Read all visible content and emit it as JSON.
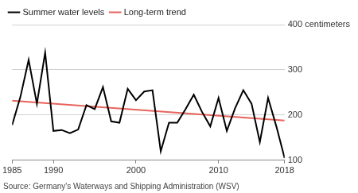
{
  "chart_data": {
    "type": "line",
    "source": "Source: Germany's Waterways and Shipping Administration (WSV)",
    "x": [
      1985,
      1986,
      1987,
      1988,
      1989,
      1990,
      1991,
      1992,
      1993,
      1994,
      1995,
      1996,
      1997,
      1998,
      1999,
      2000,
      2001,
      2002,
      2003,
      2004,
      2005,
      2006,
      2007,
      2008,
      2009,
      2010,
      2011,
      2012,
      2013,
      2014,
      2015,
      2016,
      2017,
      2018
    ],
    "series": [
      {
        "name": "Summer water levels",
        "color": "#000000",
        "marker": "none",
        "line_style": "solid",
        "values": [
          178,
          240,
          322,
          225,
          338,
          165,
          167,
          160,
          168,
          222,
          213,
          262,
          186,
          183,
          258,
          233,
          252,
          255,
          120,
          183,
          183,
          213,
          245,
          207,
          175,
          238,
          165,
          215,
          255,
          225,
          140,
          238,
          175,
          105
        ]
      },
      {
        "name": "Long-term trend",
        "color": "#e8635b",
        "marker": "none",
        "line_style": "solid",
        "x": [
          1985,
          2018
        ],
        "values": [
          232,
          188
        ]
      }
    ],
    "xlim": [
      1985,
      2018
    ],
    "xticks": [
      1985,
      1990,
      2000,
      2010,
      2018
    ],
    "ylim": [
      100,
      400
    ],
    "yticks": [
      100,
      200,
      300,
      {
        "value": 400,
        "label": "400 centimeters"
      }
    ],
    "grid": true,
    "legend": "top-left"
  }
}
